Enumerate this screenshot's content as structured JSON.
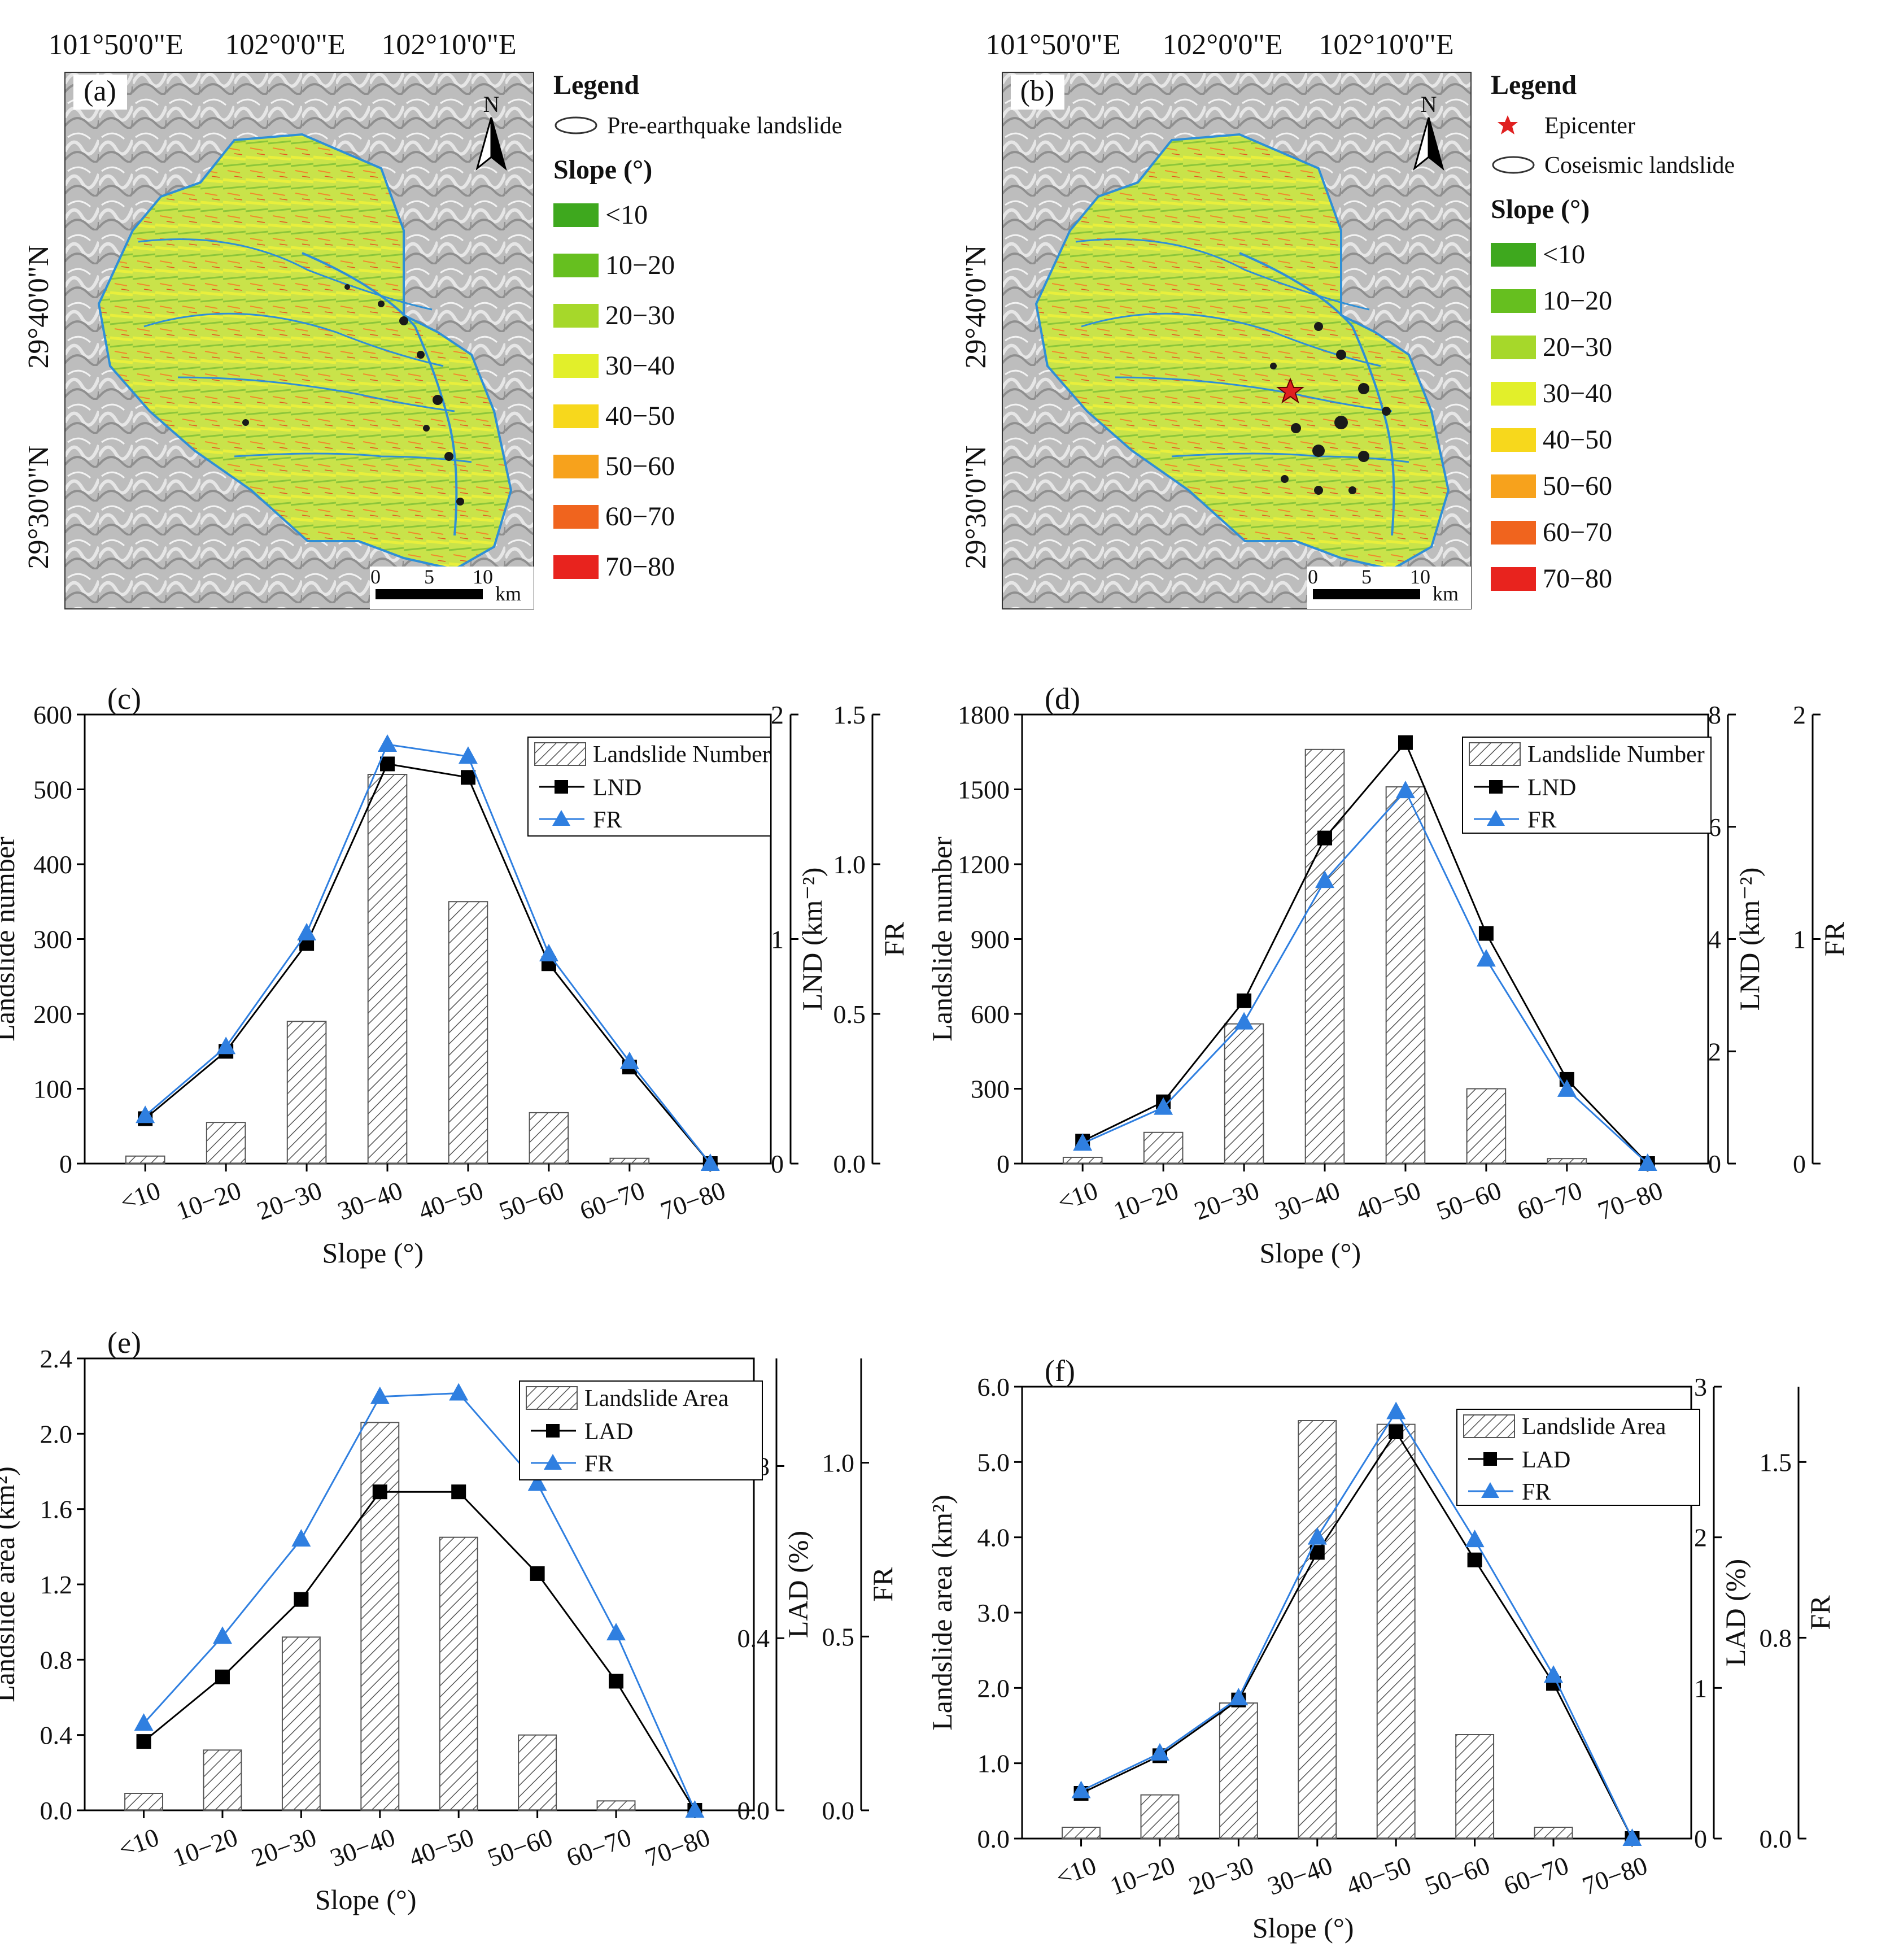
{
  "maps": [
    {
      "label": "(a)",
      "top_ticks": [
        "101°50'0\"E",
        "102°0'0\"E",
        "102°10'0\"E"
      ],
      "left_ticks": [
        "29°40'0\"N",
        "29°30'0\"N"
      ],
      "north": "N",
      "scale": {
        "labels": [
          "0",
          "5",
          "10"
        ],
        "unit": "km"
      },
      "legend_title": "Legend",
      "legend_items": [
        {
          "kind": "polygon",
          "text": "Pre-earthquake landslide"
        }
      ],
      "slope_title": "Slope (°)",
      "slope_classes": [
        "<10",
        "10−20",
        "20−30",
        "30−40",
        "40−50",
        "50−60",
        "60−70",
        "70−80"
      ],
      "epicenter": false
    },
    {
      "label": "(b)",
      "top_ticks": [
        "101°50'0\"E",
        "102°0'0\"E",
        "102°10'0\"E"
      ],
      "left_ticks": [
        "29°40'0\"N",
        "29°30'0\"N"
      ],
      "north": "N",
      "scale": {
        "labels": [
          "0",
          "5",
          "10"
        ],
        "unit": "km"
      },
      "legend_title": "Legend",
      "legend_items": [
        {
          "kind": "star",
          "text": "Epicenter"
        },
        {
          "kind": "polygon",
          "text": "Coseismic landslide"
        }
      ],
      "slope_title": "Slope (°)",
      "slope_classes": [
        "<10",
        "10−20",
        "20−30",
        "30−40",
        "40−50",
        "50−60",
        "60−70",
        "70−80"
      ],
      "epicenter": true
    }
  ],
  "slope_colors": [
    "#3ea81e",
    "#66bf1f",
    "#a6d82a",
    "#e2ef2a",
    "#f7d81c",
    "#f7a21c",
    "#f0641e",
    "#e8231e"
  ],
  "colors": {
    "black_series": "#000000",
    "blue_series": "#2f7fe0",
    "bar_hatch": "#555555"
  },
  "chart_data": [
    {
      "panel": "(c)",
      "type": "bar+line",
      "xlabel": "Slope (°)",
      "categories": [
        "<10",
        "10−20",
        "20−30",
        "30−40",
        "40−50",
        "50−60",
        "60−70",
        "70−80"
      ],
      "y1": {
        "label": "Landslide number",
        "range": [
          0,
          600
        ],
        "ticks": [
          "0",
          "100",
          "200",
          "300",
          "400",
          "500",
          "600"
        ]
      },
      "y2": {
        "label": "LND (km⁻²)",
        "range": [
          0,
          2
        ],
        "ticks": [
          "0",
          "1",
          "2"
        ],
        "minor_ticks": [
          "0.0",
          "0.5",
          "1.0",
          "1.5"
        ]
      },
      "y3": {
        "label": "FR",
        "range": [
          0,
          1.5
        ]
      },
      "bar": {
        "name": "Landslide Number",
        "values": [
          10,
          55,
          190,
          520,
          350,
          68,
          7,
          0
        ]
      },
      "lines": [
        {
          "name": "LND",
          "marker": "square",
          "color": "#000000",
          "values": [
            0.2,
            0.5,
            0.98,
            1.78,
            1.72,
            0.89,
            0.43,
            0.0
          ]
        },
        {
          "name": "FR",
          "marker": "triangle",
          "color": "#2f7fe0",
          "values": [
            0.16,
            0.39,
            0.77,
            1.4,
            1.36,
            0.7,
            0.34,
            0.0
          ]
        }
      ]
    },
    {
      "panel": "(d)",
      "type": "bar+line",
      "xlabel": "Slope (°)",
      "categories": [
        "<10",
        "10−20",
        "20−30",
        "30−40",
        "40−50",
        "50−60",
        "60−70",
        "70−80"
      ],
      "y1": {
        "label": "Landslide number",
        "range": [
          0,
          1800
        ],
        "ticks": [
          "0",
          "300",
          "600",
          "900",
          "1200",
          "1500",
          "1800"
        ]
      },
      "y2": {
        "label": "LND (km⁻²)",
        "range": [
          0,
          8
        ],
        "ticks": [
          "0",
          "2",
          "4",
          "6",
          "8"
        ]
      },
      "y3": {
        "label": "FR",
        "range": [
          0,
          2
        ],
        "ticks": [
          "0",
          "1",
          "2"
        ]
      },
      "bar": {
        "name": "Landslide Number",
        "values": [
          25,
          125,
          560,
          1660,
          1510,
          300,
          20,
          0
        ]
      },
      "lines": [
        {
          "name": "LND",
          "marker": "square",
          "color": "#000000",
          "values": [
            0.4,
            1.1,
            2.9,
            5.8,
            7.5,
            4.1,
            1.5,
            0.0
          ]
        },
        {
          "name": "FR",
          "marker": "triangle",
          "color": "#2f7fe0",
          "values": [
            0.09,
            0.25,
            0.63,
            1.26,
            1.66,
            0.91,
            0.33,
            0.0
          ]
        }
      ]
    },
    {
      "panel": "(e)",
      "type": "bar+line",
      "xlabel": "Slope (°)",
      "categories": [
        "<10",
        "10−20",
        "20−30",
        "30−40",
        "40−50",
        "50−60",
        "60−70",
        "70−80"
      ],
      "y1": {
        "label": "Landslide area (km²)",
        "range": [
          0,
          2.4
        ],
        "ticks": [
          "0.0",
          "0.4",
          "0.8",
          "1.2",
          "1.6",
          "2.0",
          "2.4"
        ]
      },
      "y2": {
        "label": "LAD (%)",
        "range": [
          0,
          1.05
        ],
        "ticks": [
          "0.0",
          "0.4",
          "0.8"
        ]
      },
      "y3": {
        "label": "FR",
        "range": [
          0,
          1.3
        ],
        "ticks": [
          "0.0",
          "0.5",
          "1.0"
        ]
      },
      "bar": {
        "name": "Landslide Area",
        "values": [
          0.09,
          0.32,
          0.92,
          2.06,
          1.45,
          0.4,
          0.05,
          0.0
        ]
      },
      "lines": [
        {
          "name": "LAD",
          "marker": "square",
          "color": "#000000",
          "values": [
            0.16,
            0.31,
            0.49,
            0.74,
            0.74,
            0.55,
            0.3,
            0.0
          ]
        },
        {
          "name": "FR",
          "marker": "triangle",
          "color": "#2f7fe0",
          "values": [
            0.25,
            0.5,
            0.78,
            1.19,
            1.2,
            0.94,
            0.51,
            0.0
          ]
        }
      ]
    },
    {
      "panel": "(f)",
      "type": "bar+line",
      "xlabel": "Slope (°)",
      "categories": [
        "<10",
        "10−20",
        "20−30",
        "30−40",
        "40−50",
        "50−60",
        "60−70",
        "70−80"
      ],
      "y1": {
        "label": "Landslide area (km²)",
        "range": [
          0,
          6
        ],
        "ticks": [
          "0.0",
          "1.0",
          "2.0",
          "3.0",
          "4.0",
          "5.0",
          "6.0"
        ]
      },
      "y2": {
        "label": "LAD (%)",
        "range": [
          0,
          3
        ],
        "ticks": [
          "0",
          "1",
          "2",
          "3"
        ]
      },
      "y3": {
        "label": "FR",
        "range": [
          0,
          1.8
        ],
        "ticks": [
          "0.0",
          "0.8",
          "1.5"
        ]
      },
      "bar": {
        "name": "Landslide Area",
        "values": [
          0.15,
          0.58,
          1.8,
          5.55,
          5.5,
          1.38,
          0.15,
          0.0
        ]
      },
      "lines": [
        {
          "name": "LAD",
          "marker": "square",
          "color": "#000000",
          "values": [
            0.3,
            0.55,
            0.92,
            1.9,
            2.7,
            1.85,
            1.03,
            0.0
          ]
        },
        {
          "name": "FR",
          "marker": "triangle",
          "color": "#2f7fe0",
          "values": [
            0.19,
            0.34,
            0.56,
            1.2,
            1.7,
            1.19,
            0.65,
            0.0
          ]
        }
      ]
    }
  ]
}
